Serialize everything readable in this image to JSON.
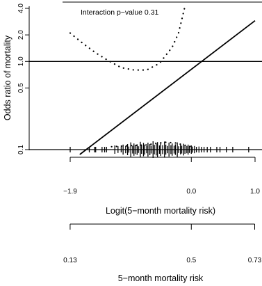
{
  "colors": {
    "ink": "#000000",
    "background": "#ffffff"
  },
  "chart_data": {
    "type": "line",
    "ylabel": "Odds ratio of mortality",
    "y_scale": "log",
    "ylim": [
      0.09,
      4.2
    ],
    "y_ticks": [
      0.1,
      0.5,
      1.0,
      2.0,
      4.0
    ],
    "y_tick_labels": [
      "0.1",
      "0.5",
      "1.0",
      "2.0",
      "4.0"
    ],
    "xlim": [
      -1.92,
      1.0
    ],
    "annotation": "Interaction p−value 0.31",
    "reference_line_y": 1.0,
    "series": [
      {
        "style": "solid",
        "x": [
          -1.75,
          1.0
        ],
        "y": [
          0.088,
          2.9
        ]
      },
      {
        "style": "dotted",
        "x": [
          -1.9,
          -1.7,
          -1.5,
          -1.3,
          -1.1,
          -0.9,
          -0.7,
          -0.5,
          -0.3,
          -0.2,
          -0.1
        ],
        "y": [
          2.1,
          1.6,
          1.25,
          1.02,
          0.85,
          0.8,
          0.8,
          0.95,
          1.45,
          2.1,
          4.2
        ]
      },
      {
        "style": "dotted",
        "x": [
          -1.25,
          -1.05,
          -0.85,
          -0.7,
          -0.55,
          -0.4,
          -0.25,
          -0.1,
          0.0
        ],
        "y": [
          0.108,
          0.11,
          0.112,
          0.113,
          0.118,
          0.121,
          0.119,
          0.112,
          0.108
        ]
      }
    ],
    "rug": {
      "baseline_y": 0.1,
      "x": [
        -1.9,
        -1.6,
        -1.52,
        -1.5,
        -1.4,
        -1.36,
        -1.33,
        -1.2,
        -1.15,
        -1.1,
        -1.07,
        -1.03,
        -1.0,
        -0.98,
        -0.95,
        -0.92,
        -0.9,
        -0.88,
        -0.85,
        -0.83,
        -0.8,
        -0.78,
        -0.75,
        -0.73,
        -0.7,
        -0.68,
        -0.65,
        -0.63,
        -0.6,
        -0.58,
        -0.55,
        -0.53,
        -0.5,
        -0.48,
        -0.45,
        -0.42,
        -0.4,
        -0.37,
        -0.35,
        -0.32,
        -0.3,
        -0.27,
        -0.25,
        -0.22,
        -0.2,
        -0.17,
        -0.15,
        -0.12,
        -0.1,
        -0.07,
        -0.05,
        -0.03,
        0.0,
        0.02,
        0.05,
        0.08,
        0.12,
        0.16,
        0.2,
        0.25,
        0.3,
        0.4,
        0.45,
        0.55,
        0.65,
        0.9
      ],
      "heights": [
        1,
        1,
        1,
        1,
        1,
        1,
        1,
        1.5,
        1.2,
        1,
        1.8,
        1.3,
        2,
        1.1,
        2.6,
        1.4,
        2.2,
        1.6,
        1.9,
        1.2,
        2.8,
        1.5,
        2.4,
        1.8,
        1.3,
        2.5,
        2,
        1.4,
        3,
        1.7,
        2.1,
        2.7,
        1.5,
        2.3,
        1.6,
        2.9,
        1.8,
        1.3,
        2.5,
        1.6,
        2.2,
        1.4,
        1.9,
        2.6,
        1.2,
        1.7,
        1.4,
        2.1,
        1.5,
        1.3,
        1.8,
        1.2,
        1.5,
        1.1,
        1.3,
        1,
        1.1,
        1,
        1,
        1,
        1,
        1,
        1,
        1,
        1,
        1
      ]
    },
    "logit_axis": {
      "tick_values": [
        -1.9,
        0.0,
        1.0
      ],
      "tick_labels": [
        "−1.9",
        "0.0",
        "1.0"
      ],
      "xlabel": "Logit(5−month mortality risk)"
    },
    "risk_axis": {
      "tick_values": [
        0.13,
        0.5,
        0.73
      ],
      "tick_labels": [
        "0.13",
        "0.5",
        "0.73"
      ],
      "xlabel": "5−month mortality risk"
    }
  }
}
